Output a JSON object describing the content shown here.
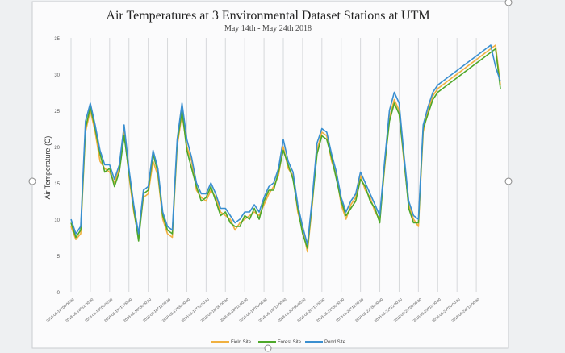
{
  "chart_data": {
    "type": "line",
    "title": "Air Temperatures at 3 Environmental Dataset Stations at UTM",
    "subtitle": "May 14th - May 24th 2018",
    "xlabel": "",
    "ylabel": "Air Temperature (C)",
    "ylim": [
      0,
      35
    ],
    "yticks": [
      0,
      5,
      10,
      15,
      20,
      25,
      30,
      35
    ],
    "grid": true,
    "legend_position": "bottom",
    "x_tick_labels": [
      "2018-05-14T00:00:00",
      "2018-05-14T12:00:00",
      "2018-05-15T00:00:00",
      "2018-05-15T12:00:00",
      "2018-05-16T00:00:00",
      "2018-05-16T12:00:00",
      "2018-05-17T00:00:00",
      "2018-05-17T12:00:00",
      "2018-05-18T00:00:00",
      "2018-05-18T12:00:00",
      "2018-05-19T00:00:00",
      "2018-05-19T12:00:00",
      "2018-05-20T00:00:00",
      "2018-05-20T12:00:00",
      "2018-05-21T00:00:00",
      "2018-05-21T12:00:00",
      "2018-05-22T00:00:00",
      "2018-05-22T12:00:00",
      "2018-05-23T00:00:00",
      "2018-05-23T12:00:00",
      "2018-05-24T00:00:00",
      "2018-05-24T12:00:00"
    ],
    "x_hours": [
      0,
      3,
      6,
      9,
      12,
      15,
      18,
      21,
      24,
      27,
      30,
      33,
      36,
      39,
      42,
      45,
      48,
      51,
      54,
      57,
      60,
      63,
      66,
      69,
      72,
      75,
      78,
      81,
      84,
      87,
      90,
      93,
      96,
      99,
      102,
      105,
      108,
      111,
      114,
      117,
      120,
      123,
      126,
      129,
      132,
      135,
      138,
      141,
      144,
      147,
      150,
      153,
      156,
      159,
      162,
      165,
      168,
      171,
      174,
      177,
      180,
      183,
      186,
      189,
      192,
      195,
      198,
      201,
      204,
      207,
      210,
      213,
      216,
      219,
      222,
      225,
      228,
      231,
      234,
      237,
      240,
      243,
      246,
      249,
      252,
      255,
      258,
      261,
      264,
      267
    ],
    "series": [
      {
        "name": "Field Site",
        "color": "#f0b040",
        "values": [
          9.0,
          7.2,
          8.0,
          22.0,
          25.0,
          22.0,
          18.0,
          17.0,
          16.5,
          15.0,
          17.0,
          22.5,
          16.0,
          11.0,
          7.5,
          13.0,
          13.5,
          18.0,
          16.0,
          10.0,
          8.0,
          7.5,
          20.0,
          24.5,
          20.0,
          18.0,
          14.0,
          13.0,
          12.5,
          14.0,
          13.0,
          11.0,
          10.5,
          10.0,
          8.5,
          9.5,
          10.0,
          10.5,
          11.0,
          10.5,
          12.0,
          13.5,
          14.5,
          16.0,
          20.0,
          17.0,
          16.0,
          11.0,
          8.5,
          5.5,
          12.0,
          19.5,
          22.0,
          21.5,
          18.0,
          16.0,
          12.0,
          10.0,
          12.0,
          13.0,
          16.0,
          14.0,
          13.0,
          11.0,
          10.0,
          17.0,
          24.0,
          26.5,
          25.0,
          18.0,
          12.0,
          10.0,
          9.0,
          22.0,
          25.0,
          27.0,
          28.0,
          28.5,
          29.0,
          29.5,
          30.0,
          30.5,
          31.0,
          31.5,
          32.0,
          32.5,
          33.0,
          33.5,
          34.0,
          28.5
        ]
      },
      {
        "name": "Forest Site",
        "color": "#4ea82a",
        "values": [
          9.5,
          7.5,
          8.5,
          22.5,
          25.5,
          22.5,
          19.0,
          16.5,
          17.0,
          14.5,
          16.5,
          21.5,
          16.5,
          11.5,
          7.0,
          13.5,
          14.0,
          19.0,
          16.5,
          10.5,
          8.5,
          8.0,
          20.5,
          25.0,
          19.5,
          17.0,
          14.5,
          12.5,
          13.0,
          14.5,
          12.5,
          10.5,
          11.0,
          9.5,
          9.0,
          9.0,
          10.5,
          10.0,
          11.5,
          10.0,
          12.5,
          14.0,
          14.0,
          16.5,
          19.5,
          17.5,
          15.5,
          11.5,
          8.0,
          6.0,
          12.5,
          19.0,
          21.5,
          21.0,
          18.5,
          15.5,
          12.5,
          10.5,
          11.5,
          12.5,
          15.5,
          14.5,
          12.5,
          11.5,
          9.5,
          17.5,
          23.5,
          26.0,
          24.5,
          18.5,
          11.5,
          9.5,
          9.5,
          22.5,
          24.5,
          26.5,
          27.5,
          28.0,
          28.5,
          29.0,
          29.5,
          30.0,
          30.5,
          31.0,
          31.5,
          32.0,
          32.5,
          33.0,
          33.5,
          28.0
        ]
      },
      {
        "name": "Pond Site",
        "color": "#3a8fd0",
        "values": [
          10.0,
          8.0,
          9.0,
          23.5,
          26.0,
          23.0,
          19.5,
          17.5,
          17.5,
          15.5,
          17.5,
          23.0,
          17.0,
          12.0,
          8.0,
          14.0,
          14.5,
          19.5,
          17.0,
          11.0,
          9.0,
          8.5,
          21.0,
          26.0,
          21.0,
          18.5,
          15.0,
          13.5,
          13.5,
          15.0,
          13.5,
          11.5,
          11.5,
          10.5,
          9.5,
          10.0,
          11.0,
          11.0,
          12.0,
          11.0,
          13.0,
          14.5,
          15.0,
          17.0,
          21.0,
          18.0,
          16.5,
          12.0,
          9.0,
          6.5,
          13.0,
          20.5,
          22.5,
          22.0,
          19.0,
          16.5,
          13.0,
          11.0,
          12.5,
          13.5,
          16.5,
          15.0,
          13.5,
          12.0,
          10.5,
          18.0,
          25.0,
          27.5,
          26.0,
          19.0,
          12.5,
          10.5,
          10.0,
          23.0,
          25.5,
          27.5,
          28.5,
          29.0,
          29.5,
          30.0,
          30.5,
          31.0,
          31.5,
          32.0,
          32.5,
          33.0,
          33.5,
          34.0,
          31.0,
          29.0
        ]
      }
    ]
  }
}
